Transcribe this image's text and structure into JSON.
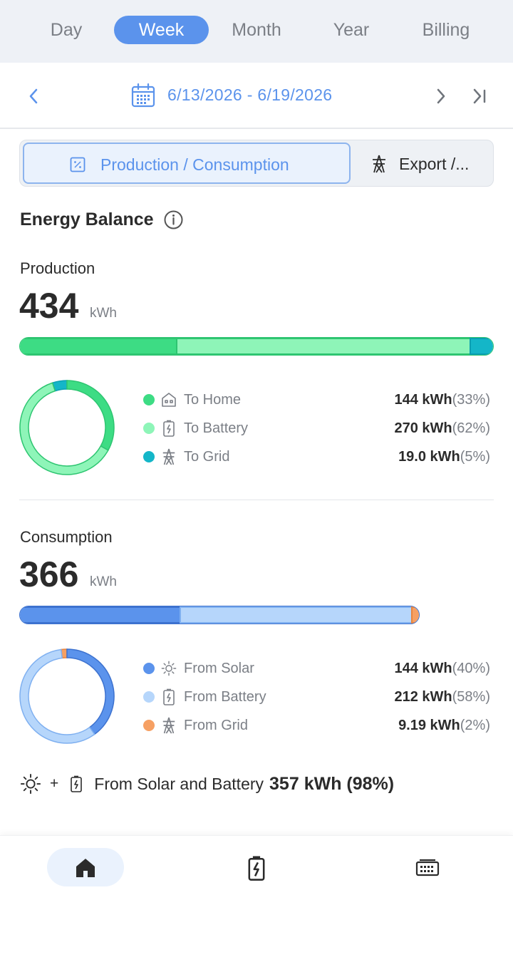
{
  "period_tabs": [
    {
      "label": "Day",
      "active": false
    },
    {
      "label": "Week",
      "active": true
    },
    {
      "label": "Month",
      "active": false
    },
    {
      "label": "Year",
      "active": false
    },
    {
      "label": "Billing",
      "active": false
    }
  ],
  "date_nav": {
    "range": "6/13/2026 - 6/19/2026",
    "icons": [
      "chevron-left-icon",
      "calendar-icon",
      "chevron-right-icon",
      "skip-to-end-icon"
    ]
  },
  "view_switch": {
    "production_label": "Production / Consumption",
    "export_label": "Export /..."
  },
  "energy_balance": {
    "title": "Energy Balance",
    "info_icon": "info-icon"
  },
  "production": {
    "label": "Production",
    "total": "434",
    "unit": "kWh",
    "items": [
      {
        "label": "To Home",
        "icon": "home-icon",
        "value": "144 kWh",
        "pct": "(33%)",
        "fraction": 0.33,
        "color": "#3ddc84"
      },
      {
        "label": "To Battery",
        "icon": "battery-icon",
        "value": "270 kWh",
        "pct": "(62%)",
        "fraction": 0.62,
        "color": "#8ef5b8"
      },
      {
        "label": "To Grid",
        "icon": "grid-tower-icon",
        "value": "19.0 kWh",
        "pct": "(5%)",
        "fraction": 0.05,
        "color": "#14b6c8"
      }
    ]
  },
  "consumption": {
    "label": "Consumption",
    "total": "366",
    "unit": "kWh",
    "items": [
      {
        "label": "From Solar",
        "icon": "sun-icon",
        "value": "144 kWh",
        "pct": "(40%)",
        "fraction": 0.4,
        "color": "#5b93ec"
      },
      {
        "label": "From Battery",
        "icon": "battery-icon",
        "value": "212 kWh",
        "pct": "(58%)",
        "fraction": 0.58,
        "color": "#b6d6fb"
      },
      {
        "label": "From Grid",
        "icon": "grid-tower-icon",
        "value": "9.19 kWh",
        "pct": "(2%)",
        "fraction": 0.02,
        "color": "#f6a063"
      }
    ]
  },
  "summary": {
    "plus": "+",
    "text": "From Solar and Battery",
    "value": "357 kWh (98%)"
  },
  "bottom_nav": [
    {
      "name": "home",
      "icon": "home-icon",
      "active": true
    },
    {
      "name": "battery",
      "icon": "battery-icon",
      "active": false
    },
    {
      "name": "devices",
      "icon": "gateway-icon",
      "active": false
    }
  ]
}
